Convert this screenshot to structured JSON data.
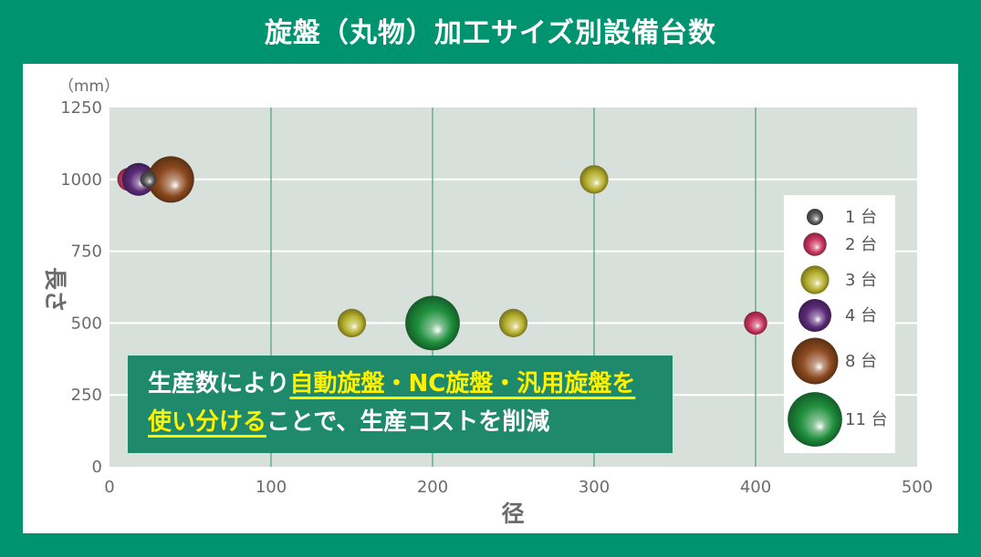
{
  "colors": {
    "frame": "#00936f",
    "panel": "#ffffff",
    "plot_background": "#d8e0db",
    "gridline_horizontal": "#ffffff",
    "gridline_vertical": "#4d9e80",
    "axis_text": "#6b6b6b",
    "callout_background": "#1f896b",
    "callout_text": "#ffffff",
    "callout_highlight": "#fff200"
  },
  "chart_data": {
    "type": "scatter",
    "title": "旋盤（丸物）加工サイズ別設備台数",
    "xlabel": "径",
    "ylabel": "長さ",
    "unit": "（mm）",
    "xlim": [
      0,
      500
    ],
    "ylim": [
      0,
      1250
    ],
    "x_ticks": [
      0,
      100,
      200,
      300,
      400,
      500
    ],
    "y_ticks": [
      0,
      250,
      500,
      750,
      1000,
      1250
    ],
    "grid": true,
    "legend_position": "right",
    "series": [
      {
        "name": "1 台",
        "count": 1,
        "color": "#555555",
        "points": [
          {
            "x": 24,
            "y": 1000
          }
        ]
      },
      {
        "name": "2 台",
        "count": 2,
        "color": "#c9365f",
        "points": [
          {
            "x": 12,
            "y": 1000
          },
          {
            "x": 400,
            "y": 500
          }
        ]
      },
      {
        "name": "3 台",
        "count": 3,
        "color": "#b6b02c",
        "points": [
          {
            "x": 300,
            "y": 1000
          },
          {
            "x": 150,
            "y": 500
          },
          {
            "x": 250,
            "y": 500
          }
        ]
      },
      {
        "name": "4 台",
        "count": 4,
        "color": "#5c2c79",
        "points": [
          {
            "x": 18,
            "y": 1000
          }
        ]
      },
      {
        "name": "8 台",
        "count": 8,
        "color": "#8c4a1f",
        "points": [
          {
            "x": 38,
            "y": 1000
          }
        ]
      },
      {
        "name": "11 台",
        "count": 11,
        "color": "#1f8f3d",
        "points": [
          {
            "x": 200,
            "y": 500
          }
        ]
      }
    ]
  },
  "callout": {
    "line1_plain": "生産数により",
    "line1_highlight": "自動旋盤・NC旋盤・汎用旋盤を",
    "line2_highlight": "使い分ける",
    "line2_plain": "ことで、生産コストを削減"
  }
}
